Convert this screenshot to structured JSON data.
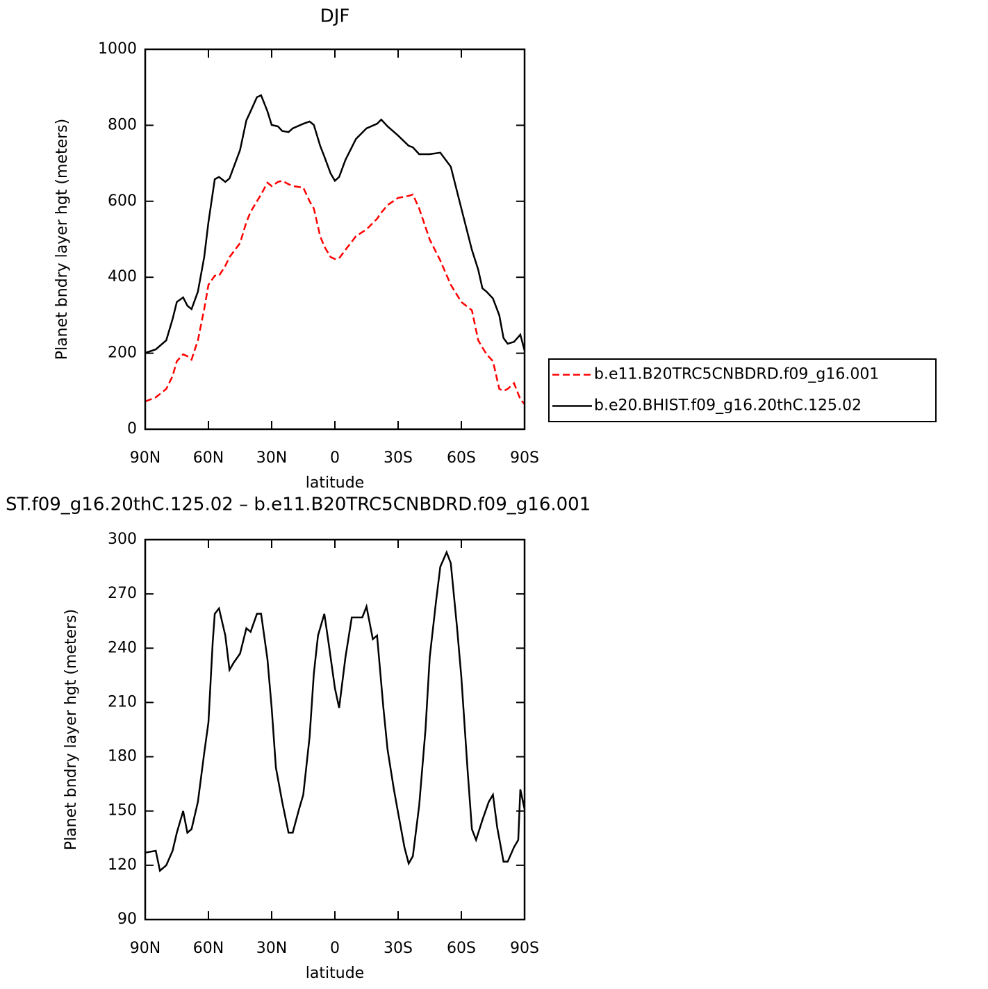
{
  "chart_data": [
    {
      "type": "line",
      "title": "DJF",
      "x_label": "latitude",
      "y_label": "Planet bndry layer hgt (meters)",
      "xlim": [
        90,
        -90
      ],
      "ylim": [
        0,
        1000
      ],
      "xticks": [
        {
          "value": 90,
          "label": "90N"
        },
        {
          "value": 60,
          "label": "60N"
        },
        {
          "value": 30,
          "label": "30N"
        },
        0,
        {
          "value": -30,
          "label": "30S"
        },
        {
          "value": -60,
          "label": "60S"
        },
        {
          "value": -90,
          "label": "90S"
        }
      ],
      "yticks": [
        0,
        200,
        400,
        600,
        800,
        1000
      ],
      "legend": "right",
      "x": [
        90,
        85,
        80,
        77,
        75,
        72,
        70,
        68,
        65,
        62,
        60,
        57,
        55,
        52,
        50,
        45,
        42,
        40,
        37,
        35,
        32,
        30,
        27,
        25,
        22,
        20,
        15,
        12,
        10,
        7,
        5,
        2,
        0,
        -2,
        -5,
        -10,
        -15,
        -20,
        -22,
        -25,
        -30,
        -35,
        -37,
        -40,
        -45,
        -50,
        -55,
        -60,
        -65,
        -68,
        -70,
        -72,
        -75,
        -78,
        -80,
        -82,
        -85,
        -88,
        -90
      ],
      "series": [
        {
          "name": "b.e11.B20TRC5CNBDRD.f09_g16.001",
          "color": "#ff0000",
          "line_style": "dashed",
          "values": [
            73,
            84,
            106,
            140,
            179,
            197,
            192,
            183,
            234,
            316,
            380,
            404,
            404,
            430,
            453,
            490,
            545,
            572,
            600,
            618,
            649,
            640,
            651,
            654,
            645,
            640,
            636,
            600,
            581,
            508,
            481,
            453,
            448,
            450,
            472,
            508,
            526,
            554,
            570,
            590,
            609,
            614,
            618,
            581,
            499,
            444,
            380,
            335,
            313,
            234,
            215,
            197,
            179,
            106,
            101,
            106,
            121,
            79,
            66
          ]
        },
        {
          "name": "b.e20.BHIST.f09_g16.20thC.125.02",
          "color": "#000000",
          "line_style": "solid",
          "values": [
            201,
            210,
            234,
            290,
            335,
            347,
            325,
            316,
            362,
            453,
            545,
            658,
            664,
            651,
            660,
            735,
            813,
            837,
            874,
            879,
            837,
            801,
            797,
            785,
            782,
            792,
            804,
            810,
            801,
            746,
            718,
            673,
            654,
            664,
            709,
            764,
            792,
            804,
            815,
            797,
            773,
            746,
            742,
            724,
            724,
            728,
            691,
            581,
            472,
            420,
            371,
            362,
            344,
            300,
            240,
            225,
            230,
            249,
            207
          ]
        }
      ]
    },
    {
      "type": "line",
      "title": "ST.f09_g16.20thC.125.02 – b.e11.B20TRC5CNBDRD.f09_g16.001",
      "x_label": "latitude",
      "y_label": "Planet bndry layer hgt (meters)",
      "xlim": [
        90,
        -90
      ],
      "ylim": [
        90,
        300
      ],
      "xticks": [
        {
          "value": 90,
          "label": "90N"
        },
        {
          "value": 60,
          "label": "60N"
        },
        {
          "value": 30,
          "label": "30N"
        },
        0,
        {
          "value": -30,
          "label": "30S"
        },
        {
          "value": -60,
          "label": "60S"
        },
        {
          "value": -90,
          "label": "90S"
        }
      ],
      "yticks": [
        90,
        120,
        150,
        180,
        210,
        240,
        270,
        300
      ],
      "color": "#000000",
      "x": [
        90,
        85,
        83,
        80,
        77,
        75,
        72,
        70,
        68,
        65,
        62,
        60,
        58,
        57,
        55,
        52,
        50,
        48,
        45,
        42,
        40,
        37,
        35,
        32,
        30,
        28,
        25,
        22,
        20,
        17,
        15,
        12,
        10,
        8,
        5,
        3,
        0,
        -2,
        -5,
        -8,
        -10,
        -13,
        -15,
        -18,
        -20,
        -23,
        -25,
        -28,
        -30,
        -33,
        -35,
        -37,
        -40,
        -43,
        -45,
        -48,
        -50,
        -53,
        -55,
        -58,
        -60,
        -63,
        -65,
        -67,
        -70,
        -73,
        -75,
        -77,
        -80,
        -82,
        -85,
        -87,
        -88,
        -90
      ],
      "values": [
        127,
        128,
        117,
        120,
        128,
        138,
        150,
        138,
        140,
        155,
        182,
        199,
        243,
        259,
        262,
        247,
        228,
        232,
        237,
        251,
        249,
        259,
        259,
        234,
        207,
        174,
        155,
        138,
        138,
        151,
        159,
        191,
        226,
        247,
        259,
        243,
        218,
        207,
        235,
        257,
        257,
        257,
        263,
        245,
        247,
        207,
        184,
        162,
        149,
        130,
        121,
        125,
        153,
        195,
        235,
        266,
        285,
        293,
        287,
        251,
        224,
        172,
        140,
        134,
        145,
        155,
        159,
        141,
        122,
        122,
        130,
        134,
        162,
        151
      ]
    }
  ]
}
